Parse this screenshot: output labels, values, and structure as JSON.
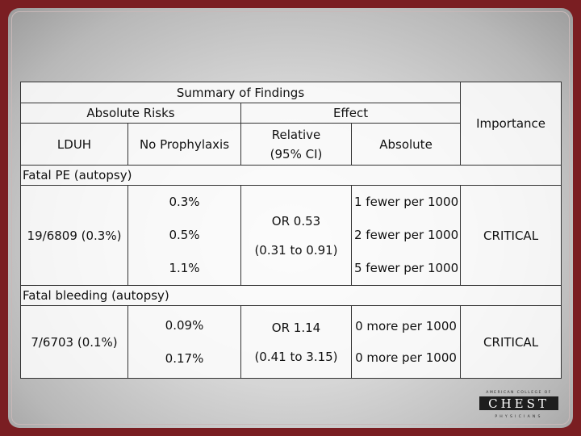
{
  "table": {
    "title": "Summary of Findings",
    "absolute_risks": "Absolute Risks",
    "effect": "Effect",
    "importance": "Importance",
    "ldu_h": "LDUH",
    "no_prophylaxis": "No Prophylaxis",
    "relative_line1": "Relative",
    "relative_line2": "(95% CI)",
    "absolute": "Absolute"
  },
  "rows": [
    {
      "label": "Fatal PE (autopsy)",
      "ldu_h": "19/6809 (0.3%)",
      "no_prophylaxis": [
        "0.3%",
        "0.5%",
        "1.1%"
      ],
      "relative_line1": "OR 0.53",
      "relative_line2": "(0.31 to 0.91)",
      "absolute": [
        "1 fewer per 1000",
        "2 fewer per 1000",
        "5 fewer per 1000"
      ],
      "importance": "CRITICAL"
    },
    {
      "label": "Fatal bleeding (autopsy)",
      "ldu_h": "7/6703 (0.1%)",
      "no_prophylaxis": [
        "0.09%",
        "0.17%"
      ],
      "relative_line1": "OR 1.14",
      "relative_line2": "(0.41 to 3.15)",
      "absolute": [
        "0 more per 1000",
        "0 more per 1000"
      ],
      "importance": "CRITICAL"
    }
  ],
  "logo": {
    "top_text": "AMERICAN COLLEGE OF",
    "main_text": "CHEST",
    "bottom_text": "PHYSICIANS"
  }
}
